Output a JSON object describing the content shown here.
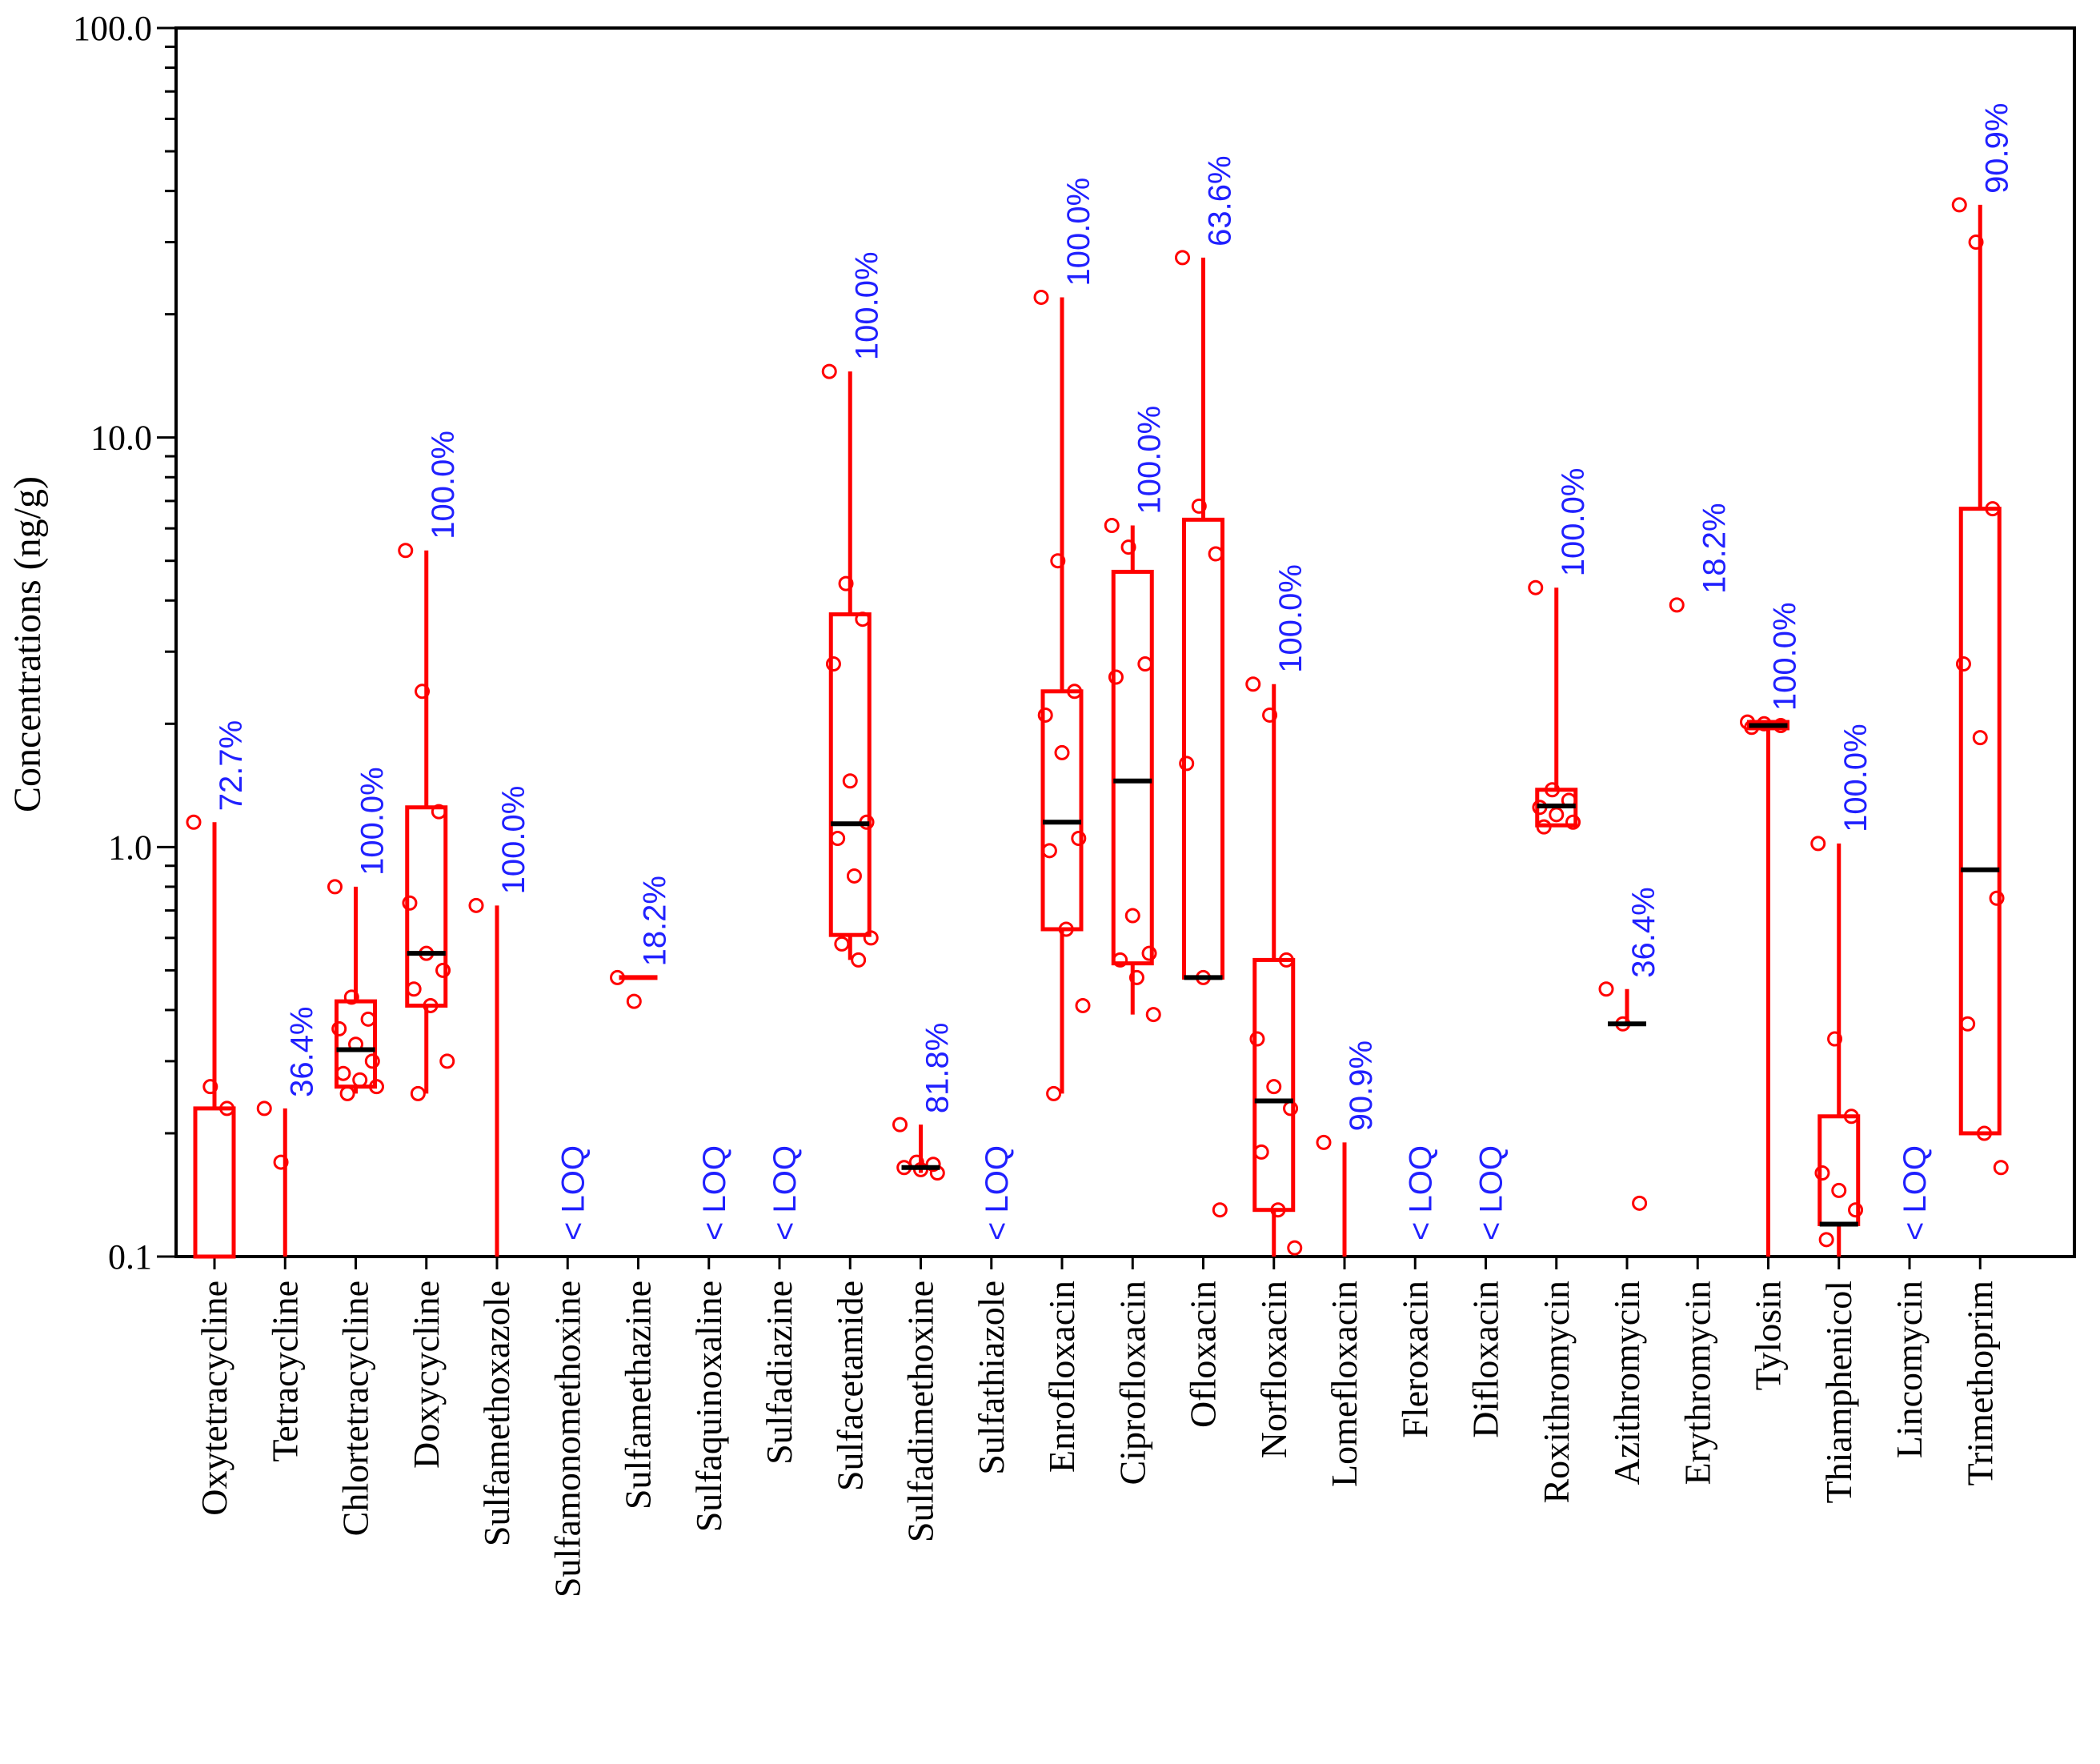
{
  "chart_data": {
    "type": "boxplot",
    "ylabel": "Concentrations (ng/g)",
    "yscale": "log",
    "ylim": [
      0.1,
      100.0
    ],
    "yticks": [
      "0.1",
      "1.0",
      "10.0",
      "100.0"
    ],
    "colors": {
      "box": "#ff0000",
      "median": "#000000",
      "label": "#2020ff"
    },
    "series": [
      {
        "name": "Oxytetracycline",
        "label": "72.7%",
        "box": [
          0.1,
          0.23
        ],
        "median": null,
        "whisker": [
          0.1,
          1.15
        ],
        "points": [
          1.15,
          0.26,
          0.23
        ]
      },
      {
        "name": "Tetracycline",
        "label": "36.4%",
        "box": null,
        "median": null,
        "whisker": [
          0.1,
          0.23
        ],
        "points": [
          0.23,
          0.17
        ]
      },
      {
        "name": "Chlortetracycline",
        "label": "100.0%",
        "box": [
          0.26,
          0.42
        ],
        "median": 0.32,
        "whisker": [
          0.25,
          0.8
        ],
        "points": [
          0.8,
          0.43,
          0.38,
          0.36,
          0.33,
          0.3,
          0.28,
          0.27,
          0.26,
          0.25
        ]
      },
      {
        "name": "Doxycycline",
        "label": "100.0%",
        "box": [
          0.41,
          1.25
        ],
        "median": 0.55,
        "whisker": [
          0.25,
          5.3
        ],
        "points": [
          5.3,
          2.4,
          1.22,
          0.73,
          0.55,
          0.5,
          0.45,
          0.41,
          0.3,
          0.25
        ]
      },
      {
        "name": "Sulfamethoxazole",
        "label": "100.0%",
        "box": null,
        "median": null,
        "whisker": [
          0.1,
          0.72
        ],
        "points": [
          0.72
        ]
      },
      {
        "name": "Sulfamonomethoxine",
        "label": "< LOQ",
        "box": null,
        "median": null,
        "whisker": null,
        "points": []
      },
      {
        "name": "Sulfamethazine",
        "label": "18.2%",
        "box": null,
        "median": 0.48,
        "whisker": null,
        "points": [
          0.48,
          0.42
        ]
      },
      {
        "name": "Sulfaquinoxaline",
        "label": "< LOQ",
        "box": null,
        "median": null,
        "whisker": null,
        "points": []
      },
      {
        "name": "Sulfadiazine",
        "label": "< LOQ",
        "box": null,
        "median": null,
        "whisker": null,
        "points": []
      },
      {
        "name": "Sulfacetamide",
        "label": "100.0%",
        "box": [
          0.61,
          3.7
        ],
        "median": 1.14,
        "whisker": [
          0.53,
          14.5
        ],
        "points": [
          14.5,
          4.4,
          3.6,
          2.8,
          1.45,
          1.15,
          1.05,
          0.85,
          0.6,
          0.58,
          0.53
        ]
      },
      {
        "name": "Sulfadimethoxine",
        "label": "81.8%",
        "box": null,
        "median": 0.165,
        "whisker": [
          0.16,
          0.21
        ],
        "points": [
          0.21,
          0.17,
          0.168,
          0.165,
          0.163,
          0.16
        ]
      },
      {
        "name": "Sulfathiazole",
        "label": "< LOQ",
        "box": null,
        "median": null,
        "whisker": null,
        "points": []
      },
      {
        "name": "Enrofloxacin",
        "label": "100.0%",
        "box": [
          0.63,
          2.4
        ],
        "median": 1.15,
        "whisker": [
          0.25,
          22.0
        ],
        "points": [
          22.0,
          5.0,
          2.4,
          2.1,
          1.7,
          1.05,
          0.98,
          0.63,
          0.41,
          0.25
        ]
      },
      {
        "name": "Ciprofloxacin",
        "label": "100.0%",
        "box": [
          0.52,
          4.7
        ],
        "median": 1.45,
        "whisker": [
          0.39,
          6.1
        ],
        "points": [
          6.1,
          5.4,
          2.8,
          2.6,
          0.68,
          0.55,
          0.53,
          0.48,
          0.39
        ]
      },
      {
        "name": "Ofloxacin",
        "label": "63.6%",
        "box": [
          0.48,
          6.3
        ],
        "median": 0.48,
        "whisker": [
          0.48,
          27.5
        ],
        "points": [
          27.5,
          6.8,
          5.2,
          1.6,
          0.48,
          0.13
        ]
      },
      {
        "name": "Norfloxacin",
        "label": "100.0%",
        "box": [
          0.13,
          0.53
        ],
        "median": 0.24,
        "whisker": [
          0.1,
          2.5
        ],
        "points": [
          2.5,
          2.1,
          0.53,
          0.34,
          0.26,
          0.23,
          0.18,
          0.13,
          0.105
        ]
      },
      {
        "name": "Lomefloxacin",
        "label": "90.9%",
        "box": null,
        "median": null,
        "whisker": [
          0.1,
          0.19
        ],
        "points": [
          0.19
        ]
      },
      {
        "name": "Fleroxacin",
        "label": "< LOQ",
        "box": null,
        "median": null,
        "whisker": null,
        "points": []
      },
      {
        "name": "Difloxacin",
        "label": "< LOQ",
        "box": null,
        "median": null,
        "whisker": null,
        "points": []
      },
      {
        "name": "Roxithromycin",
        "label": "100.0%",
        "box": [
          1.13,
          1.38
        ],
        "median": 1.26,
        "whisker": [
          1.12,
          4.3
        ],
        "points": [
          4.3,
          1.38,
          1.3,
          1.25,
          1.2,
          1.15,
          1.12
        ]
      },
      {
        "name": "Azithromycin",
        "label": "36.4%",
        "box": null,
        "median": 0.37,
        "whisker": [
          0.37,
          0.45
        ],
        "points": [
          0.45,
          0.37,
          0.135
        ]
      },
      {
        "name": "Erythromycin",
        "label": "18.2%",
        "box": null,
        "median": null,
        "whisker": null,
        "points": [
          3.9
        ]
      },
      {
        "name": "Tylosin",
        "label": "100.0%",
        "box": [
          1.95,
          2.02
        ],
        "median": 1.98,
        "whisker": [
          0.1,
          2.02
        ],
        "points": [
          2.02,
          2.0,
          1.98,
          1.96
        ]
      },
      {
        "name": "Thiamphenicol",
        "label": "100.0%",
        "box": [
          0.12,
          0.22
        ],
        "median": 0.12,
        "whisker": [
          0.1,
          1.02
        ],
        "points": [
          1.02,
          0.34,
          0.22,
          0.16,
          0.145,
          0.13,
          0.11
        ]
      },
      {
        "name": "Lincomycin",
        "label": "< LOQ",
        "box": null,
        "median": null,
        "whisker": null,
        "points": []
      },
      {
        "name": "Trimethoprim",
        "label": "90.9%",
        "box": [
          0.2,
          6.7
        ],
        "median": 0.88,
        "whisker": [
          0.2,
          37.0
        ],
        "points": [
          37.0,
          30.0,
          6.7,
          2.8,
          1.85,
          0.75,
          0.37,
          0.2,
          0.165
        ]
      }
    ]
  }
}
